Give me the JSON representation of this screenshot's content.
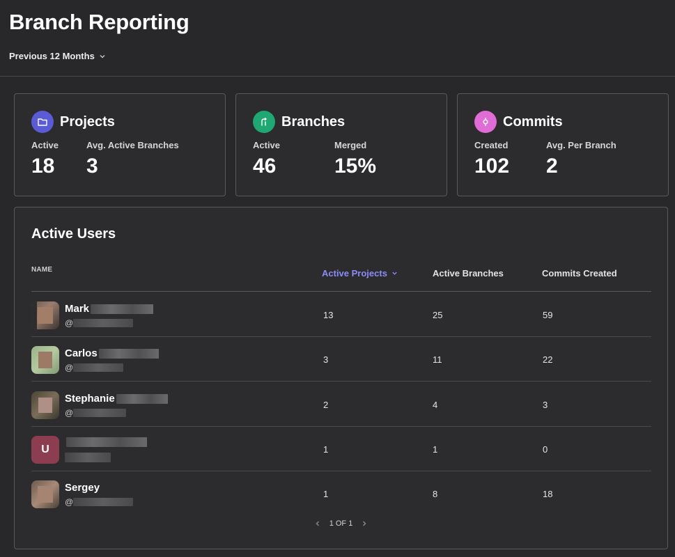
{
  "header": {
    "title": "Branch Reporting",
    "period_label": "Previous 12 Months"
  },
  "cards": {
    "projects": {
      "title": "Projects",
      "icon": "folder-icon",
      "color": "#5b5bd6",
      "m1_label": "Active",
      "m1_value": "18",
      "m2_label": "Avg. Active Branches",
      "m2_value": "3"
    },
    "branches": {
      "title": "Branches",
      "icon": "branch-merge-icon",
      "color": "#1fa774",
      "m1_label": "Active",
      "m1_value": "46",
      "m2_label": "Merged",
      "m2_value": "15%"
    },
    "commits": {
      "title": "Commits",
      "icon": "commit-icon",
      "color": "#e06cd6",
      "m1_label": "Created",
      "m1_value": "102",
      "m2_label": "Avg. Per Branch",
      "m2_value": "2"
    }
  },
  "users": {
    "title": "Active Users",
    "columns": {
      "name": "NAME",
      "projects": "Active Projects",
      "branches": "Active Branches",
      "commits": "Commits Created"
    },
    "rows": [
      {
        "name": "Mark",
        "handle": "@",
        "avatar_letter": "",
        "projects": "13",
        "branches": "25",
        "commits": "59"
      },
      {
        "name": "Carlos",
        "handle": "@",
        "avatar_letter": "",
        "projects": "3",
        "branches": "11",
        "commits": "22"
      },
      {
        "name": "Stephanie",
        "handle": "@",
        "avatar_letter": "",
        "projects": "2",
        "branches": "4",
        "commits": "3"
      },
      {
        "name": "",
        "handle": "",
        "avatar_letter": "U",
        "projects": "1",
        "branches": "1",
        "commits": "0"
      },
      {
        "name": "Sergey",
        "handle": "@",
        "avatar_letter": "",
        "projects": "1",
        "branches": "8",
        "commits": "18"
      }
    ],
    "pager": "1 OF 1"
  }
}
